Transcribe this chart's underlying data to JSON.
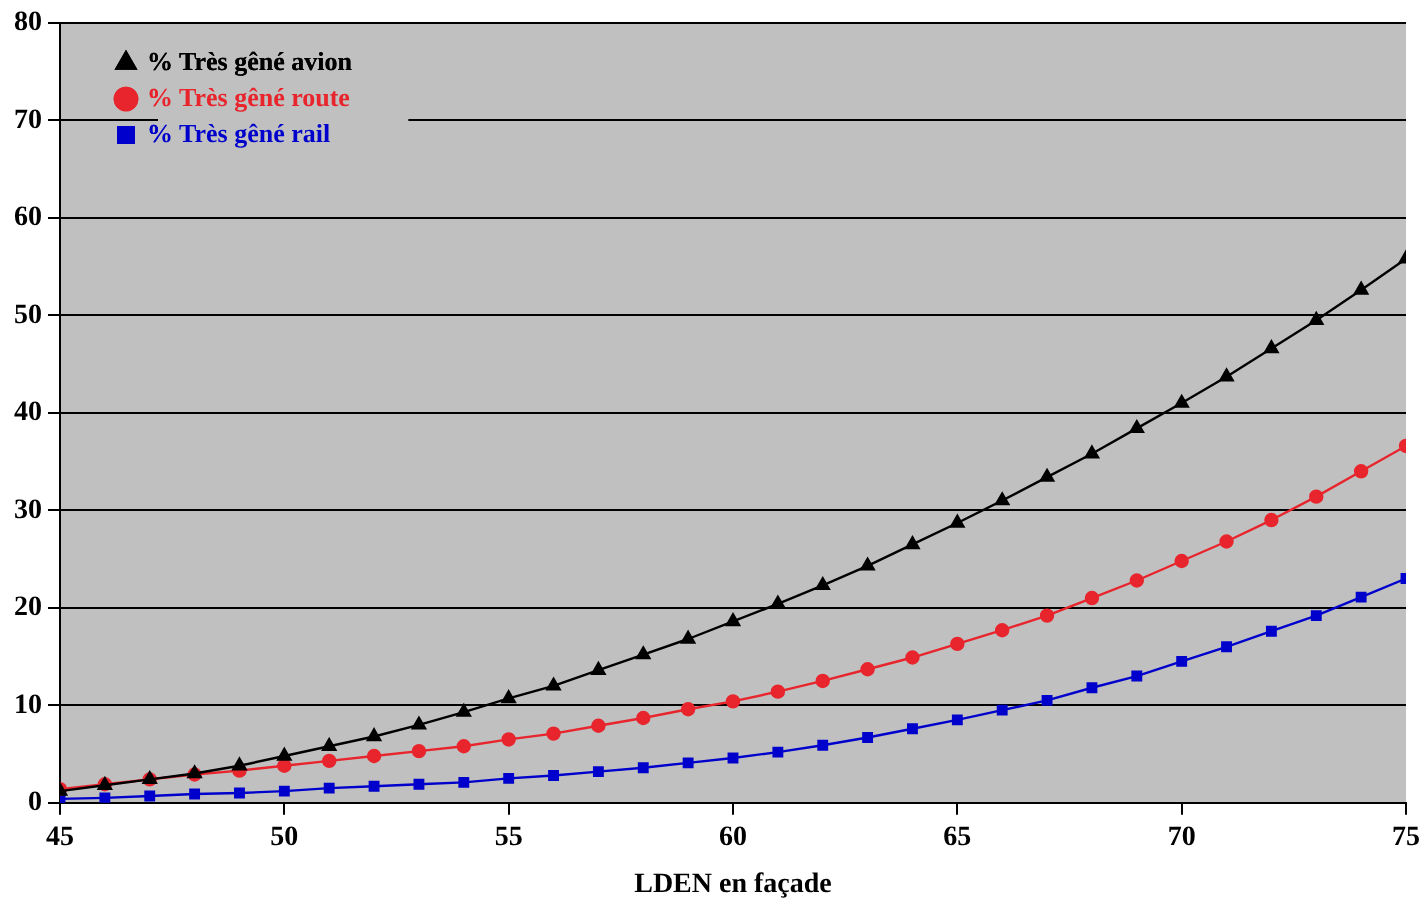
{
  "chart_data": {
    "type": "line",
    "xlabel": "LDEN en façade",
    "x": [
      45,
      46,
      47,
      48,
      49,
      50,
      51,
      52,
      53,
      54,
      55,
      56,
      57,
      58,
      59,
      60,
      61,
      62,
      63,
      64,
      65,
      66,
      67,
      68,
      69,
      70,
      71,
      72,
      73,
      74,
      75
    ],
    "xlim": [
      45,
      75
    ],
    "xticks": [
      45,
      50,
      55,
      60,
      65,
      70,
      75
    ],
    "ylim": [
      0,
      80
    ],
    "yticks": [
      0,
      10,
      20,
      30,
      40,
      50,
      60,
      70,
      80
    ],
    "grid": "y",
    "legend": "top left",
    "line_style": "solid",
    "series": [
      {
        "name": "% Très gêné avion",
        "color": "#000000",
        "marker": "triangle",
        "values": [
          1.2,
          1.8,
          2.4,
          3.0,
          3.8,
          4.8,
          5.8,
          6.8,
          8.0,
          9.3,
          10.7,
          12.0,
          13.6,
          15.2,
          16.8,
          18.6,
          20.4,
          22.3,
          24.3,
          26.5,
          28.7,
          31.0,
          33.4,
          35.8,
          38.4,
          41.0,
          43.7,
          46.6,
          49.5,
          52.6,
          55.8
        ]
      },
      {
        "name": "% Très gêné route",
        "color": "#e8242c",
        "marker": "circle",
        "values": [
          1.4,
          1.9,
          2.4,
          2.9,
          3.3,
          3.8,
          4.3,
          4.8,
          5.3,
          5.8,
          6.5,
          7.1,
          7.9,
          8.7,
          9.6,
          10.4,
          11.4,
          12.5,
          13.7,
          14.9,
          16.3,
          17.7,
          19.2,
          21.0,
          22.8,
          24.8,
          26.8,
          29.0,
          31.4,
          34.0,
          36.6
        ]
      },
      {
        "name": "% Très gêné rail",
        "color": "#0000cc",
        "marker": "square",
        "values": [
          0.4,
          0.5,
          0.7,
          0.9,
          1.0,
          1.2,
          1.5,
          1.7,
          1.9,
          2.1,
          2.5,
          2.8,
          3.2,
          3.6,
          4.1,
          4.6,
          5.2,
          5.9,
          6.7,
          7.6,
          8.5,
          9.5,
          10.5,
          11.8,
          13.0,
          14.5,
          16.0,
          17.6,
          19.2,
          21.1,
          23.0
        ]
      }
    ]
  }
}
